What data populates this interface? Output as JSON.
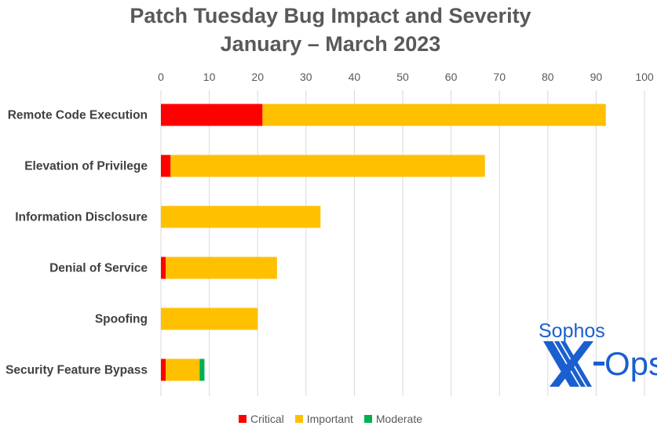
{
  "chart_data": {
    "type": "bar",
    "orientation": "horizontal",
    "stacked": true,
    "title": "Patch Tuesday Bug Impact and Severity\nJanuary – March 2023",
    "title_lines": [
      "Patch Tuesday Bug Impact and Severity",
      "January – March 2023"
    ],
    "categories": [
      "Remote Code Execution",
      "Elevation of Privilege",
      "Information Disclosure",
      "Denial of Service",
      "Spoofing",
      "Security Feature Bypass"
    ],
    "series": [
      {
        "name": "Critical",
        "color": "#ff0000",
        "values": [
          21,
          2,
          0,
          1,
          0,
          1
        ]
      },
      {
        "name": "Important",
        "color": "#ffc000",
        "values": [
          71,
          65,
          33,
          23,
          20,
          7
        ]
      },
      {
        "name": "Moderate",
        "color": "#00b050",
        "values": [
          0,
          0,
          0,
          0,
          0,
          1
        ]
      }
    ],
    "xlim": [
      0,
      100
    ],
    "xticks": [
      0,
      10,
      20,
      30,
      40,
      50,
      60,
      70,
      80,
      90,
      100
    ],
    "xaxis_position": "top",
    "grid": true,
    "legend": "bottom"
  },
  "logo": {
    "text_top": "Sophos",
    "text_bottom": "X-Ops",
    "color": "#1a5fd0"
  }
}
